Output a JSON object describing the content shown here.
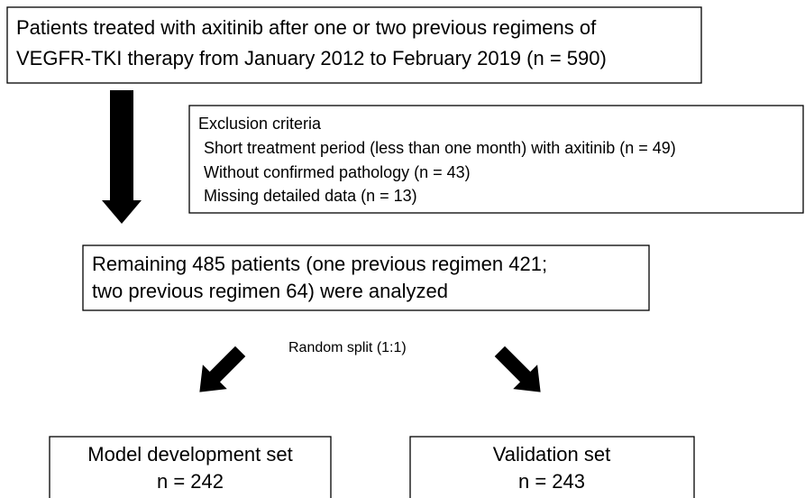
{
  "source": {
    "lines": [
      "Patients treated with axitinib after one or two previous regimens of",
      "VEGFR-TKI therapy from January 2012 to February 2019 (n = 590)"
    ]
  },
  "exclusion": {
    "title": "Exclusion criteria",
    "items": [
      "Short treatment period (less than one month) with axitinib (n = 49)",
      "Without confirmed pathology (n = 43)",
      "Missing detailed data (n = 13)"
    ]
  },
  "remaining": {
    "lines": [
      "Remaining 485 patients (one previous regimen 421;",
      "two previous regimen 64) were analyzed"
    ]
  },
  "split_label": "Random split (1:1)",
  "groups": [
    {
      "name": "Model development set",
      "n": "n = 242"
    },
    {
      "name": "Validation set",
      "n": "n = 243"
    }
  ]
}
